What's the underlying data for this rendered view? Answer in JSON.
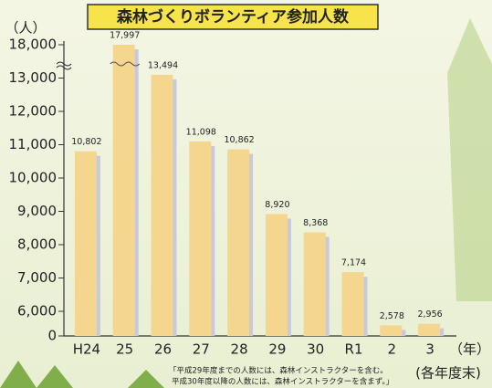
{
  "chart_data": {
    "type": "bar",
    "title": "森林づくりボランティア参加人数",
    "y_unit": "（人）",
    "x_unit": "（年）",
    "note_period": "(各年度末)",
    "notes": [
      "「平成29年度までの人数には、森林インストラクターを含む。",
      "平成30年度以降の人数には、森林インストラクターを含まず。」"
    ],
    "categories": [
      "H24",
      "25",
      "26",
      "27",
      "28",
      "29",
      "30",
      "R1",
      "2",
      "3"
    ],
    "values": [
      10802,
      17997,
      13494,
      11098,
      10862,
      8920,
      8368,
      7174,
      2578,
      2956
    ],
    "value_labels": [
      "10,802",
      "17,997",
      "13,494",
      "11,098",
      "10,862",
      "8,920",
      "8,368",
      "7,174",
      "2,578",
      "2,956"
    ],
    "color": "#f5d68e",
    "ylim": [
      0,
      18000
    ],
    "yticks": [
      0,
      {
        "value": 6000,
        "label": "6,000"
      },
      {
        "value": 7000,
        "label": "7,000"
      },
      {
        "value": 8000,
        "label": "8,000"
      },
      {
        "value": 9000,
        "label": "9,000"
      },
      {
        "value": 10000,
        "label": "10,000"
      },
      {
        "value": 11000,
        "label": "11,000"
      },
      {
        "value": 12000,
        "label": "12,000"
      },
      {
        "value": 13000,
        "label": "13,000"
      },
      {
        "value": 18000,
        "label": "18,000"
      }
    ],
    "axis_break": true
  }
}
